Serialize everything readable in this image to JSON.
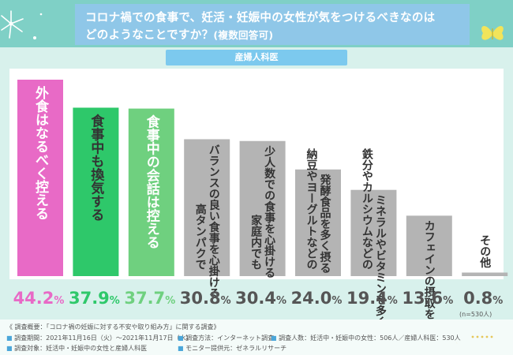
{
  "title": {
    "line1": "コロナ禍での食事で、妊活・妊娠中の女性が気をつけるべきなのは",
    "line2": "どのようなことですか？",
    "line2_suffix": "(複数回答可)"
  },
  "sublabel": "産婦人科医",
  "chart_data": {
    "type": "bar",
    "title": "コロナ禍での食事で、妊活・妊娠中の女性が気をつけるべきなのは どのようなことですか？(複数回答可)",
    "categories": [
      [
        "外食はなるべく控える"
      ],
      [
        "食事中も換気する"
      ],
      [
        "食事中の会話は控える"
      ],
      [
        "バランスの良い食事を心掛ける",
        "高タンパクで"
      ],
      [
        "少人数での食事を心掛ける",
        "家庭内でも"
      ],
      [
        "発酵食品を多く摂る",
        "納豆やヨーグルトなどの"
      ],
      [
        "ミネラルやビタミンを多く摂る",
        "鉄分やカルシウムなどの"
      ],
      [
        "カフェインの摂取を控える"
      ],
      [
        "その他"
      ]
    ],
    "values": [
      44.2,
      37.9,
      37.7,
      30.8,
      30.4,
      24.0,
      19.4,
      13.6,
      0.8
    ],
    "value_labels": [
      "44.2",
      "37.9",
      "37.7",
      "30.8",
      "30.4",
      "24.0",
      "19.4",
      "13.6",
      "0.8"
    ],
    "unit": "%",
    "bar_colors": [
      "#e86ac6",
      "#2ec86a",
      "#6fd07f",
      "#b4b4b4",
      "#b4b4b4",
      "#b4b4b4",
      "#b4b4b4",
      "#b4b4b4",
      "#b4b4b4"
    ],
    "value_colors": [
      "#e86ac6",
      "#2ec86a",
      "#6fd07f",
      "#555555",
      "#555555",
      "#555555",
      "#555555",
      "#555555",
      "#555555"
    ],
    "label_colors": [
      "#ffffff",
      "#333333",
      "#ffffff",
      "#333333",
      "#333333",
      "#333333",
      "#333333",
      "#333333",
      "#333333"
    ],
    "ylim": [
      0,
      44.2
    ],
    "xlabel": "",
    "ylabel": ""
  },
  "note_n": "(n=530人)",
  "footer": {
    "line1": "《 調査概要：「コロナ禍の妊娠に対する不安や取り組み方」に関する調査》",
    "period": "調査期間：2021年11月16日（火）～2021年11月17日（水）",
    "target": "調査対象：妊活中・妊娠中の女性と産婦人科医",
    "method": "調査方法：インターネット調査",
    "monitor": "モニター提供元：ゼネラルリサーチ",
    "count": "調査人数：妊活中・妊娠中の女性：506人／産婦人科医：530人"
  },
  "colors": {
    "title_band": "#7fd0c6",
    "title_bar": "#8fc7e8",
    "sublabel_bg": "#7cc9ee",
    "background": "#d8f1ec"
  },
  "icons": {
    "flower": "flower-icon",
    "butterfly": "butterfly-icon",
    "logo": "brand-logo-icon"
  }
}
